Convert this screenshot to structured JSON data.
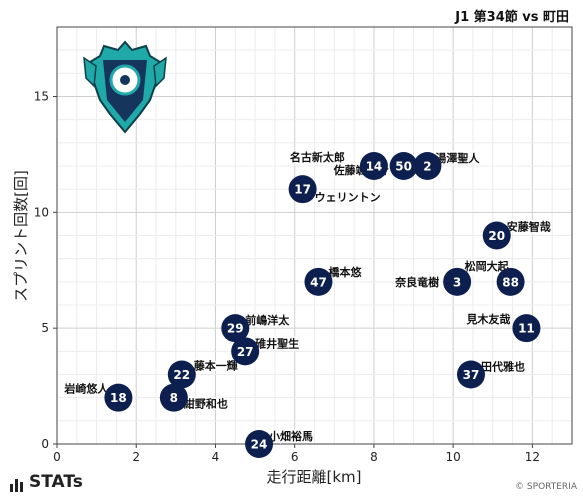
{
  "header": {
    "title": "J1 第34節 vs 町田"
  },
  "footer": {
    "logo_text": "STATs",
    "copyright": "© SPORTERIA"
  },
  "chart_data": {
    "type": "scatter",
    "xlabel": "走行距離[km]",
    "ylabel": "スプリント回数[回]",
    "xlim": [
      0,
      13
    ],
    "ylim": [
      0,
      18
    ],
    "xticks": [
      0,
      2,
      4,
      6,
      8,
      10,
      12
    ],
    "yticks": [
      0,
      5,
      10,
      15
    ],
    "grid": true,
    "marker_color": "#0d1f4f",
    "marker_text_color": "#ffffff",
    "points": [
      {
        "number": "14",
        "name": "名古新太郎",
        "x": 8.0,
        "y": 12
      },
      {
        "number": "50",
        "name": "佐藤颯之介",
        "x": 8.75,
        "y": 12
      },
      {
        "number": "2",
        "name": "湯澤聖人",
        "x": 9.35,
        "y": 12
      },
      {
        "number": "17",
        "name": "ウェリントン",
        "x": 6.2,
        "y": 11
      },
      {
        "number": "20",
        "name": "安藤智哉",
        "x": 11.1,
        "y": 9
      },
      {
        "number": "47",
        "name": "橋本悠",
        "x": 6.6,
        "y": 7
      },
      {
        "number": "3",
        "name": "奈良竜樹",
        "x": 10.1,
        "y": 7
      },
      {
        "number": "88",
        "name": "松岡大起",
        "x": 11.45,
        "y": 7
      },
      {
        "number": "29",
        "name": "前嶋洋太",
        "x": 4.5,
        "y": 5
      },
      {
        "number": "11",
        "name": "見木友哉",
        "x": 11.85,
        "y": 5
      },
      {
        "number": "27",
        "name": "碓井聖生",
        "x": 4.75,
        "y": 4
      },
      {
        "number": "22",
        "name": "藤本一輝",
        "x": 3.15,
        "y": 3
      },
      {
        "number": "37",
        "name": "田代雅也",
        "x": 10.45,
        "y": 3
      },
      {
        "number": "18",
        "name": "岩崎悠人",
        "x": 1.55,
        "y": 2
      },
      {
        "number": "8",
        "name": "紺野和也",
        "x": 2.95,
        "y": 2
      },
      {
        "number": "24",
        "name": "小畑裕馬",
        "x": 5.1,
        "y": 0
      }
    ]
  }
}
